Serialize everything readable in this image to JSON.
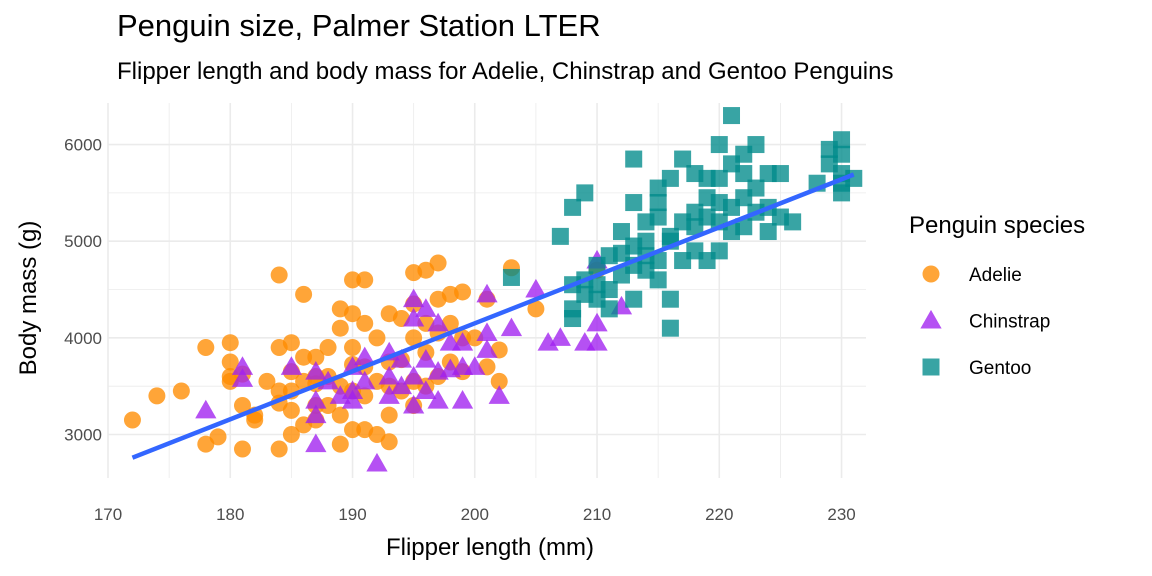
{
  "chart_data": {
    "type": "scatter",
    "title": "Penguin size, Palmer Station LTER",
    "subtitle": "Flipper length and body mass for Adelie, Chinstrap and Gentoo Penguins",
    "xlabel": "Flipper length (mm)",
    "ylabel": "Body mass (g)",
    "xlim": [
      170,
      232
    ],
    "ylim": [
      2550,
      6430
    ],
    "x_ticks": [
      170,
      180,
      190,
      200,
      210,
      220,
      230
    ],
    "y_ticks": [
      3000,
      4000,
      5000,
      6000
    ],
    "grid": true,
    "legend": {
      "title": "Penguin species",
      "position": "right"
    },
    "trend_line": {
      "name": "",
      "color": "#3366ff",
      "x": [
        172,
        231
      ],
      "y": [
        2760,
        5690
      ]
    },
    "series": [
      {
        "name": "Adelie",
        "marker": "circle",
        "color": "#ff8c00",
        "points": [
          [
            172,
            3150
          ],
          [
            174,
            3400
          ],
          [
            176,
            3450
          ],
          [
            178,
            3900
          ],
          [
            178,
            2900
          ],
          [
            179,
            2975
          ],
          [
            180,
            3950
          ],
          [
            180,
            3750
          ],
          [
            180,
            3600
          ],
          [
            180,
            3550
          ],
          [
            181,
            3625
          ],
          [
            181,
            3300
          ],
          [
            181,
            2850
          ],
          [
            182,
            3200
          ],
          [
            182,
            3150
          ],
          [
            183,
            3550
          ],
          [
            184,
            4650
          ],
          [
            184,
            3900
          ],
          [
            184,
            3450
          ],
          [
            184,
            3325
          ],
          [
            184,
            2850
          ],
          [
            185,
            3950
          ],
          [
            185,
            3650
          ],
          [
            185,
            3450
          ],
          [
            185,
            3250
          ],
          [
            185,
            3000
          ],
          [
            186,
            4450
          ],
          [
            186,
            3800
          ],
          [
            186,
            3550
          ],
          [
            186,
            3100
          ],
          [
            187,
            3800
          ],
          [
            187,
            3600
          ],
          [
            187,
            3525
          ],
          [
            187,
            3300
          ],
          [
            187,
            3150
          ],
          [
            188,
            3900
          ],
          [
            188,
            3600
          ],
          [
            188,
            3300
          ],
          [
            189,
            4300
          ],
          [
            189,
            4100
          ],
          [
            189,
            3500
          ],
          [
            189,
            3200
          ],
          [
            189,
            2900
          ],
          [
            190,
            4600
          ],
          [
            190,
            4250
          ],
          [
            190,
            3900
          ],
          [
            190,
            3725
          ],
          [
            190,
            3450
          ],
          [
            190,
            3050
          ],
          [
            191,
            4600
          ],
          [
            191,
            4150
          ],
          [
            191,
            3700
          ],
          [
            191,
            3400
          ],
          [
            191,
            3050
          ],
          [
            192,
            4000
          ],
          [
            192,
            3550
          ],
          [
            192,
            3000
          ],
          [
            193,
            4250
          ],
          [
            193,
            3750
          ],
          [
            193,
            3500
          ],
          [
            193,
            3200
          ],
          [
            193,
            2925
          ],
          [
            194,
            4200
          ],
          [
            194,
            3775
          ],
          [
            194,
            3450
          ],
          [
            195,
            4675
          ],
          [
            195,
            4350
          ],
          [
            195,
            4000
          ],
          [
            195,
            3550
          ],
          [
            195,
            3300
          ],
          [
            196,
            4700
          ],
          [
            196,
            4150
          ],
          [
            196,
            3850
          ],
          [
            196,
            3500
          ],
          [
            197,
            4775
          ],
          [
            197,
            4400
          ],
          [
            197,
            4050
          ],
          [
            197,
            3600
          ],
          [
            198,
            4450
          ],
          [
            198,
            4150
          ],
          [
            198,
            3750
          ],
          [
            199,
            4000
          ],
          [
            199,
            3650
          ],
          [
            199,
            4475
          ],
          [
            200,
            4000
          ],
          [
            201,
            3700
          ],
          [
            201,
            4400
          ],
          [
            202,
            3550
          ],
          [
            202,
            3875
          ],
          [
            203,
            4725
          ],
          [
            205,
            4300
          ],
          [
            210,
            4700
          ]
        ]
      },
      {
        "name": "Chinstrap",
        "marker": "triangle",
        "color": "#a020f0",
        "points": [
          [
            178,
            3250
          ],
          [
            181,
            3700
          ],
          [
            181,
            3575
          ],
          [
            185,
            3700
          ],
          [
            187,
            3650
          ],
          [
            187,
            3350
          ],
          [
            187,
            3200
          ],
          [
            187,
            2900
          ],
          [
            188,
            3550
          ],
          [
            189,
            3400
          ],
          [
            190,
            3450
          ],
          [
            190,
            3350
          ],
          [
            190,
            3700
          ],
          [
            191,
            3800
          ],
          [
            191,
            3550
          ],
          [
            192,
            2700
          ],
          [
            193,
            3850
          ],
          [
            193,
            3600
          ],
          [
            193,
            3400
          ],
          [
            194,
            3775
          ],
          [
            194,
            3500
          ],
          [
            195,
            4400
          ],
          [
            195,
            4200
          ],
          [
            195,
            3600
          ],
          [
            195,
            3300
          ],
          [
            196,
            4300
          ],
          [
            196,
            3775
          ],
          [
            196,
            3450
          ],
          [
            197,
            4150
          ],
          [
            197,
            3650
          ],
          [
            197,
            3350
          ],
          [
            198,
            3950
          ],
          [
            198,
            3675
          ],
          [
            199,
            3950
          ],
          [
            199,
            3700
          ],
          [
            199,
            3350
          ],
          [
            200,
            3700
          ],
          [
            201,
            4450
          ],
          [
            201,
            4050
          ],
          [
            201,
            3875
          ],
          [
            202,
            3400
          ],
          [
            203,
            4100
          ],
          [
            205,
            4500
          ],
          [
            206,
            3950
          ],
          [
            207,
            4000
          ],
          [
            209,
            3950
          ],
          [
            210,
            3950
          ],
          [
            210,
            4800
          ],
          [
            210,
            4150
          ],
          [
            212,
            4325
          ]
        ]
      },
      {
        "name": "Gentoo",
        "marker": "square",
        "color": "#008b8b",
        "points": [
          [
            203,
            4625
          ],
          [
            207,
            5050
          ],
          [
            208,
            4550
          ],
          [
            208,
            4300
          ],
          [
            208,
            4200
          ],
          [
            208,
            5350
          ],
          [
            209,
            4600
          ],
          [
            209,
            4450
          ],
          [
            209,
            5500
          ],
          [
            210,
            4400
          ],
          [
            210,
            4750
          ],
          [
            210,
            4550
          ],
          [
            211,
            4300
          ],
          [
            211,
            4850
          ],
          [
            211,
            4500
          ],
          [
            212,
            4875
          ],
          [
            212,
            4650
          ],
          [
            212,
            5100
          ],
          [
            213,
            4400
          ],
          [
            213,
            4750
          ],
          [
            213,
            5850
          ],
          [
            213,
            5400
          ],
          [
            213,
            4950
          ],
          [
            214,
            4700
          ],
          [
            214,
            5200
          ],
          [
            214,
            4850
          ],
          [
            214,
            5000
          ],
          [
            215,
            5250
          ],
          [
            215,
            4800
          ],
          [
            215,
            5550
          ],
          [
            215,
            5400
          ],
          [
            215,
            4600
          ],
          [
            216,
            5650
          ],
          [
            216,
            5000
          ],
          [
            216,
            4400
          ],
          [
            216,
            4100
          ],
          [
            216,
            5050
          ],
          [
            217,
            5200
          ],
          [
            217,
            4800
          ],
          [
            217,
            5850
          ],
          [
            218,
            5700
          ],
          [
            218,
            5300
          ],
          [
            218,
            4900
          ],
          [
            218,
            5150
          ],
          [
            219,
            5450
          ],
          [
            219,
            5250
          ],
          [
            219,
            4800
          ],
          [
            219,
            5650
          ],
          [
            220,
            6000
          ],
          [
            220,
            5400
          ],
          [
            220,
            5200
          ],
          [
            220,
            4900
          ],
          [
            220,
            5650
          ],
          [
            221,
            6300
          ],
          [
            221,
            5350
          ],
          [
            221,
            5100
          ],
          [
            221,
            5800
          ],
          [
            222,
            5700
          ],
          [
            222,
            5450
          ],
          [
            222,
            5150
          ],
          [
            222,
            5900
          ],
          [
            223,
            5550
          ],
          [
            223,
            5300
          ],
          [
            223,
            6000
          ],
          [
            224,
            5700
          ],
          [
            224,
            5350
          ],
          [
            224,
            5100
          ],
          [
            225,
            5700
          ],
          [
            225,
            5250
          ],
          [
            226,
            5200
          ],
          [
            228,
            5600
          ],
          [
            229,
            5800
          ],
          [
            229,
            5950
          ],
          [
            230,
            5900
          ],
          [
            230,
            5700
          ],
          [
            230,
            5500
          ],
          [
            230,
            6050
          ],
          [
            230,
            5600
          ],
          [
            231,
            5650
          ]
        ]
      }
    ]
  }
}
